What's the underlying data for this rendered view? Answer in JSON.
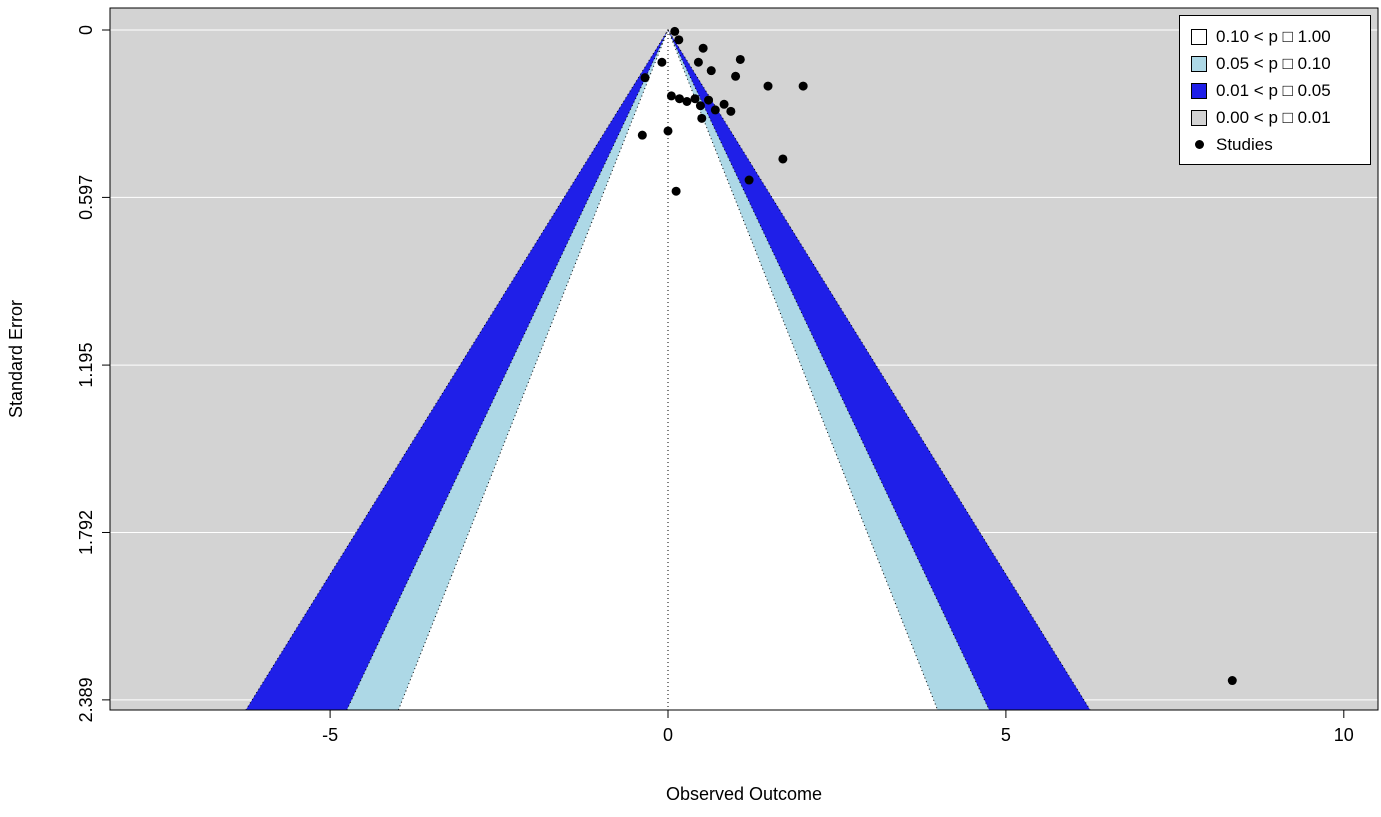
{
  "chart_data": {
    "type": "scatter",
    "subtype": "contour-enhanced-funnel-plot",
    "title": "",
    "xlabel": "Observed Outcome",
    "ylabel": "Standard Error",
    "x_ticks": [
      -5,
      0,
      5,
      10
    ],
    "y_ticks": [
      0,
      0.597,
      1.195,
      1.792,
      2.389
    ],
    "xlim": [
      -8.26,
      10.51
    ],
    "ylim": [
      0,
      2.43
    ],
    "grid": true,
    "plot_bg": "#d3d3d3",
    "gridline_color": "#ffffff",
    "reference_line_x": 0,
    "contours": [
      {
        "label": "0.10 < p □ 1.00",
        "z": 1.645,
        "color": "#ffffff"
      },
      {
        "label": "0.05 < p □ 0.10",
        "z": 1.96,
        "color": "#add8e6"
      },
      {
        "label": "0.01 < p □ 0.05",
        "z": 2.576,
        "color": "#1f1fe8"
      },
      {
        "label": "0.00 < p □ 0.01",
        "z": null,
        "color": "#d3d3d3"
      }
    ],
    "legend": {
      "position": "top-right",
      "studies_label": "Studies",
      "point_color": "#000000"
    },
    "points": [
      [
        0.1,
        0.005
      ],
      [
        0.16,
        0.035
      ],
      [
        0.52,
        0.065
      ],
      [
        -0.09,
        0.115
      ],
      [
        1.07,
        0.105
      ],
      [
        0.64,
        0.145
      ],
      [
        1.0,
        0.165
      ],
      [
        -0.34,
        0.17
      ],
      [
        0.45,
        0.115
      ],
      [
        0.05,
        0.235
      ],
      [
        0.17,
        0.245
      ],
      [
        0.28,
        0.255
      ],
      [
        0.4,
        0.245
      ],
      [
        0.48,
        0.27
      ],
      [
        0.6,
        0.25
      ],
      [
        0.7,
        0.285
      ],
      [
        0.83,
        0.265
      ],
      [
        0.93,
        0.29
      ],
      [
        1.48,
        0.2
      ],
      [
        2.0,
        0.2
      ],
      [
        -0.38,
        0.375
      ],
      [
        0.0,
        0.36
      ],
      [
        0.5,
        0.315
      ],
      [
        1.7,
        0.46
      ],
      [
        1.2,
        0.535
      ],
      [
        0.12,
        0.575
      ],
      [
        8.35,
        2.32
      ]
    ]
  }
}
